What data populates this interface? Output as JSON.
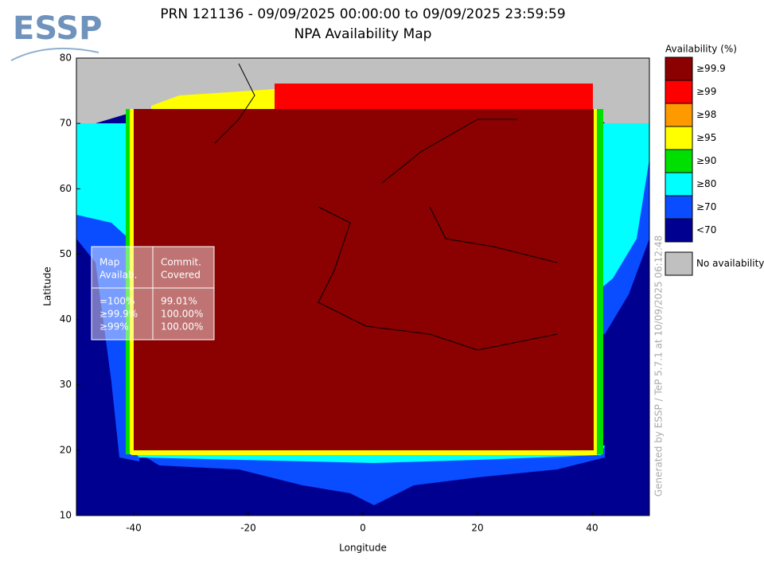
{
  "logo": "ESSP",
  "title": "PRN 121136 - 09/09/2025 00:00:00 to 09/09/2025 23:59:59",
  "subtitle": "NPA Availability Map",
  "map": {
    "xlabel": "Longitude",
    "ylabel": "Latitude",
    "xlim": [
      -50,
      50
    ],
    "ylim": [
      10,
      80
    ],
    "xticks": [
      -40,
      -20,
      0,
      20,
      40
    ],
    "yticks": [
      10,
      20,
      30,
      40,
      50,
      60,
      70,
      80
    ]
  },
  "legend": {
    "title": "Availability (%)",
    "items": [
      {
        "label": "≥99.9",
        "color": "#8b0000"
      },
      {
        "label": "≥99",
        "color": "#ff0000"
      },
      {
        "label": "≥98",
        "color": "#ff9900"
      },
      {
        "label": "≥95",
        "color": "#ffff00"
      },
      {
        "label": "≥90",
        "color": "#00e000"
      },
      {
        "label": "≥80",
        "color": "#00ffff"
      },
      {
        "label": "≥70",
        "color": "#0a4cff"
      },
      {
        "label": "<70",
        "color": "#000090"
      }
    ],
    "none": {
      "label": "No availability",
      "color": "#c0c0c0"
    }
  },
  "table": {
    "header": [
      [
        "Map",
        "Availab."
      ],
      [
        "Commit.",
        "Covered"
      ]
    ],
    "rows": [
      [
        "=100%",
        "99.01%"
      ],
      [
        "≥99.9%",
        "100.00%"
      ],
      [
        "≥99%",
        "100.00%"
      ]
    ]
  },
  "footer": "Generated by ESSP / TeP 5.7.1 at 10/09/2025 06:12:48"
}
